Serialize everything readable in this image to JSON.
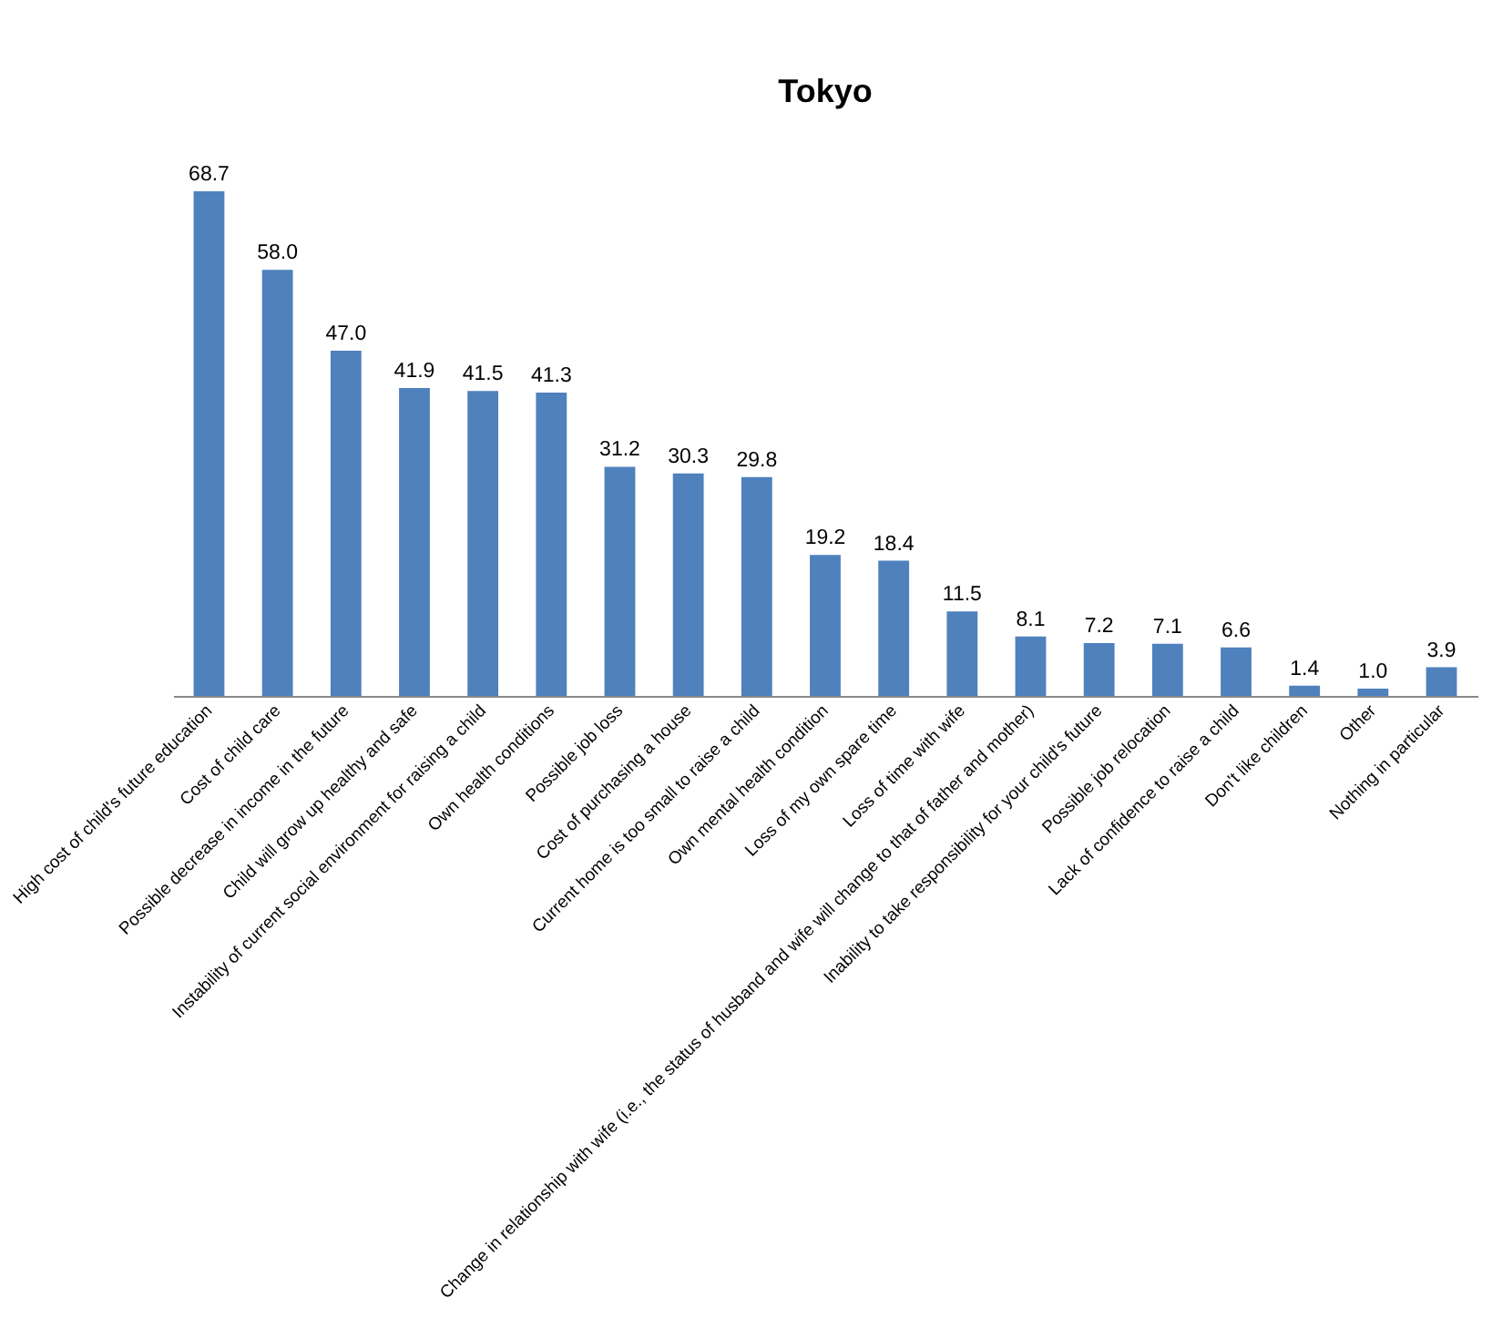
{
  "chart_data": {
    "type": "bar",
    "title": "Tokyo",
    "categories": [
      "High cost of child's future education",
      "Cost of child care",
      "Possible decrease in income in the future",
      "Child will grow up healthy and safe",
      "Instability of current social environment for raising a child",
      "Own health conditions",
      "Possible job loss",
      "Cost of purchasing a house",
      "Current home is too small to raise a child",
      "Own mental health condition",
      "Loss of my own spare time",
      "Loss of time with wife",
      "Change in relationship with wife (i.e., the status of husband and wife will change to that of father and mother)",
      "Inability to take responsibility for your child's future",
      "Possible job relocation",
      "Lack of confidence to raise a child",
      "Don't like children",
      "Other",
      "Nothing in particular"
    ],
    "values": [
      68.7,
      58.0,
      47.0,
      41.9,
      41.5,
      41.3,
      31.2,
      30.3,
      29.8,
      19.2,
      18.4,
      11.5,
      8.1,
      7.2,
      7.1,
      6.6,
      1.4,
      1.0,
      3.9
    ],
    "value_labels": [
      "68.7",
      "58.0",
      "47.0",
      "41.9",
      "41.5",
      "41.3",
      "31.2",
      "30.3",
      "29.8",
      "19.2",
      "18.4",
      "11.5",
      "8.1",
      "7.2",
      "7.1",
      "6.6",
      "1.4",
      "1.0",
      "3.9"
    ],
    "color": "#4f81bd"
  }
}
